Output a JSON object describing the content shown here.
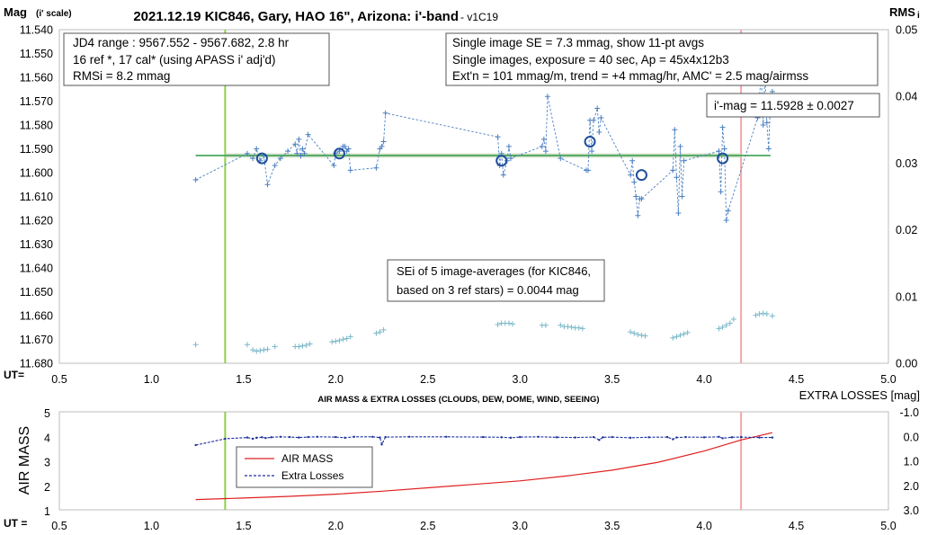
{
  "chart_data": [
    {
      "type": "scatter",
      "title": "2021.12.19 KIC846, Gary, HAO 16\", Arizona: i'-band",
      "title_suffix": " - v1C19",
      "ylabel": "Mag",
      "ylabel_sub": "(i' scale)",
      "y2label": "RMS",
      "y2label_sub": "i",
      "xlabel": "UT=",
      "xlim": [
        0.5,
        5.0
      ],
      "ylim": [
        11.54,
        11.68
      ],
      "y2lim": [
        0.0,
        0.05
      ],
      "y_inverted": true,
      "grid": false,
      "x_ticks": [
        "0.5",
        "1.0",
        "1.5",
        "2.0",
        "2.5",
        "3.0",
        "3.5",
        "4.0",
        "4.5",
        "5.0"
      ],
      "y_ticks": [
        "11.540",
        "11.550",
        "11.560",
        "11.570",
        "11.580",
        "11.590",
        "11.600",
        "11.610",
        "11.620",
        "11.630",
        "11.640",
        "11.650",
        "11.660",
        "11.670",
        "11.680"
      ],
      "y2_ticks": [
        "0.00",
        "0.01",
        "0.02",
        "0.03",
        "0.04",
        "0.05"
      ],
      "mean_mag": 11.5928,
      "colors": {
        "series": "#4a7fc1",
        "avg": "#1f4e9c",
        "mean": "#3da04d",
        "green_line": "#8fce4b",
        "pink_line": "#f4a6a8",
        "rms": "#7ab8c8"
      },
      "vlines": [
        1.4,
        4.2
      ],
      "series": [
        {
          "x": [
            1.24,
            1.52,
            1.55,
            1.57,
            1.59,
            1.61,
            1.63,
            1.67,
            1.7,
            1.74,
            1.78,
            1.79,
            1.8,
            1.81,
            1.82,
            1.83,
            1.85,
            1.99,
            2.0,
            2.02,
            2.04,
            2.05,
            2.06,
            2.07,
            2.08,
            2.22,
            2.24,
            2.25,
            2.26,
            2.27,
            2.88,
            2.89,
            2.9,
            2.91,
            2.93,
            2.94,
            2.95,
            3.12,
            3.13,
            3.14,
            3.15,
            3.22,
            3.36,
            3.37,
            3.38,
            3.39,
            3.4,
            3.42,
            3.43,
            3.44,
            3.6,
            3.61,
            3.62,
            3.63,
            3.64,
            3.65,
            3.66,
            3.83,
            3.84,
            3.85,
            3.86,
            3.87,
            3.88,
            3.89,
            4.08,
            4.09,
            4.1,
            4.11,
            4.12,
            4.13,
            4.29,
            4.31,
            4.32,
            4.33,
            4.34,
            4.35,
            4.36,
            4.37
          ],
          "y": [
            11.603,
            11.592,
            11.594,
            11.59,
            11.595,
            11.593,
            11.605,
            11.597,
            11.594,
            11.591,
            11.588,
            11.592,
            11.586,
            11.593,
            11.59,
            11.592,
            11.584,
            11.597,
            11.592,
            11.591,
            11.589,
            11.589,
            11.591,
            11.59,
            11.599,
            11.598,
            11.59,
            11.589,
            11.587,
            11.575,
            11.585,
            11.597,
            11.592,
            11.601,
            11.595,
            11.589,
            11.594,
            11.589,
            11.586,
            11.591,
            11.568,
            11.594,
            11.599,
            11.599,
            11.578,
            11.591,
            11.578,
            11.573,
            11.583,
            11.577,
            11.601,
            11.595,
            11.604,
            11.61,
            11.618,
            11.611,
            11.611,
            11.599,
            11.582,
            11.602,
            11.617,
            11.589,
            11.61,
            11.595,
            11.591,
            11.608,
            11.581,
            11.59,
            11.62,
            11.616,
            11.577,
            11.559,
            11.58,
            11.559,
            11.579,
            11.59,
            11.569,
            11.566
          ]
        },
        {
          "name": "5 image-averages",
          "x": [
            1.6,
            2.02,
            2.9,
            3.38,
            3.66,
            4.1
          ],
          "y": [
            11.594,
            11.592,
            11.595,
            11.587,
            11.601,
            11.594
          ]
        },
        {
          "name": "RMSi",
          "x": [
            1.24,
            1.52,
            1.55,
            1.57,
            1.59,
            1.61,
            1.63,
            1.67,
            1.78,
            1.8,
            1.82,
            1.84,
            1.86,
            1.98,
            2.0,
            2.02,
            2.04,
            2.06,
            2.08,
            2.22,
            2.24,
            2.26,
            2.88,
            2.9,
            2.92,
            2.94,
            2.96,
            3.12,
            3.14,
            3.22,
            3.24,
            3.26,
            3.28,
            3.3,
            3.32,
            3.34,
            3.6,
            3.62,
            3.64,
            3.66,
            3.68,
            3.83,
            3.85,
            3.87,
            3.89,
            3.91,
            4.08,
            4.1,
            4.12,
            4.14,
            4.16,
            4.28,
            4.3,
            4.32,
            4.34,
            4.37
          ],
          "y": [
            0.0028,
            0.0028,
            0.002,
            0.0018,
            0.0019,
            0.002,
            0.0021,
            0.0025,
            0.0025,
            0.0025,
            0.0026,
            0.0027,
            0.0029,
            0.0032,
            0.0033,
            0.0034,
            0.0036,
            0.0037,
            0.004,
            0.0045,
            0.0047,
            0.005,
            0.0058,
            0.006,
            0.006,
            0.006,
            0.0059,
            0.0057,
            0.0057,
            0.0057,
            0.0055,
            0.0055,
            0.0054,
            0.0053,
            0.0053,
            0.0052,
            0.0047,
            0.0045,
            0.0043,
            0.0042,
            0.0041,
            0.0038,
            0.004,
            0.0042,
            0.0044,
            0.0046,
            0.0052,
            0.0054,
            0.0057,
            0.006,
            0.0066,
            0.0072,
            0.0074,
            0.0075,
            0.0074,
            0.0071
          ]
        }
      ],
      "notes": {
        "box1": [
          "JD4 range : 9567.552 - 9567.682, 2.8  hr",
          "16 ref *, 17 cal* (using APASS i' adj'd)",
          "RMSi = 8.2 mmag"
        ],
        "box2": [
          "Single image SE = 7.3 mmag, show 11-pt avgs",
          "Single images, exposure = 40 sec, Ap = 45x4x12b3",
          "Ext'n = 101 mmag/m, trend = +4 mmag/hr, AMC' = 2.5 mag/airmss"
        ],
        "box3": [
          "i'-mag = 11.5928 ± 0.0027"
        ],
        "box4": [
          "SEi of 5 image-averages (for KIC846,",
          "based on 3 ref stars) = 0.0044 mag"
        ]
      }
    },
    {
      "type": "line",
      "title": "AIR MASS & EXTRA LOSSES (CLOUDS, DEW, DOME, WIND, SEEING)",
      "ylabel": "AIR MASS",
      "y2label": "EXTRA LOSSES [mag]",
      "xlabel": "UT =",
      "xlim": [
        0.5,
        5.0
      ],
      "ylim": [
        1,
        5
      ],
      "y2lim": [
        -1.0,
        3.0
      ],
      "y2_inverted": true,
      "x_ticks": [
        "0.5",
        "1.0",
        "1.5",
        "2.0",
        "2.5",
        "3.0",
        "3.5",
        "4.0",
        "4.5",
        "5.0"
      ],
      "y_ticks": [
        "1",
        "2",
        "3",
        "4",
        "5"
      ],
      "y2_ticks": [
        "-1.0",
        "0.0",
        "1.0",
        "2.0",
        "3.0"
      ],
      "legend": [
        "AIR MASS",
        "Extra Losses"
      ],
      "colors": {
        "airmass": "#e02020",
        "losses": "#1a2f9c"
      },
      "series": [
        {
          "name": "AIR MASS",
          "x": [
            1.24,
            1.5,
            1.75,
            2.0,
            2.25,
            2.5,
            2.75,
            3.0,
            3.25,
            3.5,
            3.75,
            4.0,
            4.2,
            4.37
          ],
          "y": [
            1.42,
            1.48,
            1.55,
            1.64,
            1.76,
            1.9,
            2.04,
            2.18,
            2.38,
            2.62,
            2.94,
            3.4,
            3.85,
            4.15
          ]
        },
        {
          "name": "Extra Losses",
          "x": [
            1.24,
            1.4,
            1.52,
            1.55,
            1.57,
            1.6,
            1.62,
            1.65,
            1.7,
            1.75,
            1.8,
            1.85,
            1.9,
            2.0,
            2.05,
            2.1,
            2.2,
            2.24,
            2.25,
            2.27,
            2.4,
            2.6,
            2.8,
            2.9,
            2.95,
            3.0,
            3.1,
            3.2,
            3.3,
            3.4,
            3.43,
            3.45,
            3.5,
            3.6,
            3.7,
            3.8,
            3.83,
            3.85,
            3.9,
            4.0,
            4.08,
            4.1,
            4.15,
            4.2,
            4.3,
            4.37
          ],
          "y": [
            0.36,
            0.1,
            0.05,
            0.1,
            0.06,
            0.04,
            0.07,
            0.04,
            0.02,
            0.03,
            0.05,
            0.03,
            0.02,
            0.03,
            0.06,
            0.02,
            0.02,
            0.05,
            0.33,
            0.03,
            0.02,
            0.02,
            0.03,
            0.04,
            0.06,
            0.03,
            0.02,
            0.04,
            0.05,
            0.03,
            0.15,
            0.04,
            0.03,
            0.06,
            0.04,
            0.03,
            0.12,
            0.05,
            0.03,
            0.04,
            0.02,
            0.08,
            0.04,
            0.03,
            0.05,
            0.05
          ]
        }
      ]
    }
  ]
}
